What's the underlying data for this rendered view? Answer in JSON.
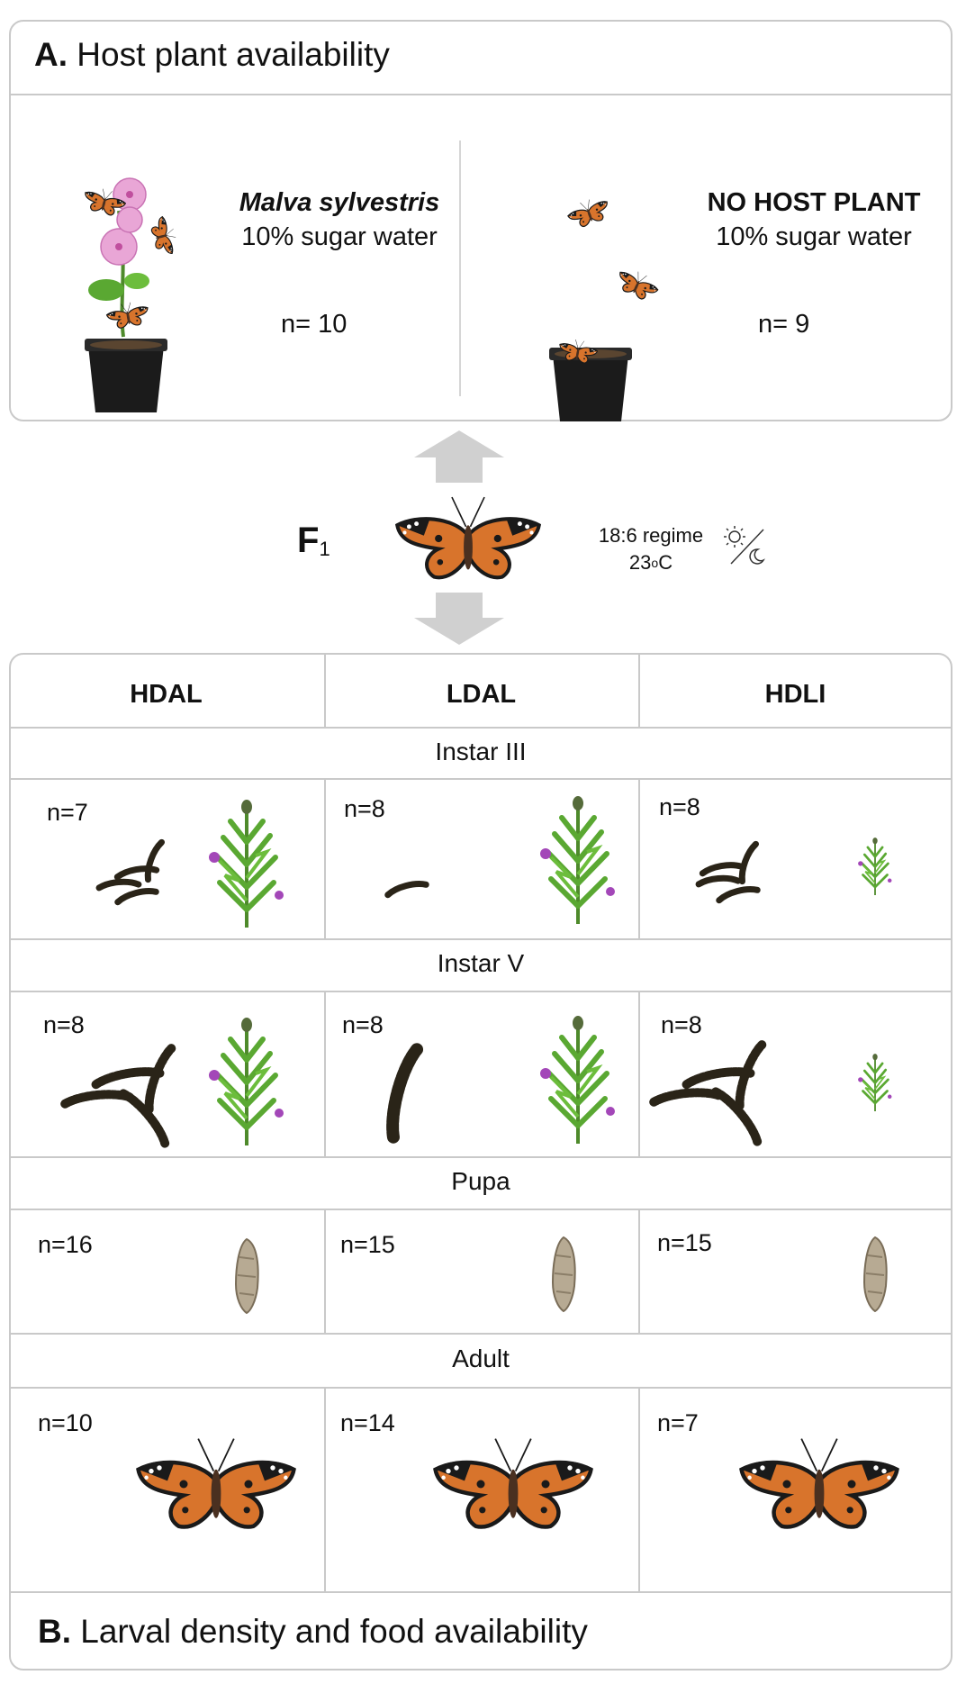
{
  "panel_a": {
    "label": "A.",
    "title": "Host plant availability",
    "left": {
      "plant": "Malva sylvestris",
      "food": "10% sugar water",
      "n": "n= 10"
    },
    "right": {
      "plant": "NO HOST PLANT",
      "food": "10% sugar water",
      "n": "n= 9"
    }
  },
  "f1": {
    "label": "F",
    "sub": "1"
  },
  "regime": {
    "line1": "18:6 regime",
    "temp_value": "23",
    "temp_sup": "o",
    "temp_unit": "C"
  },
  "panel_b": {
    "label": "B.",
    "title": "Larval density and food availability",
    "columns": [
      "HDAL",
      "LDAL",
      "HDLI"
    ],
    "stages": [
      {
        "name": "Instar III",
        "counts": [
          "n=7",
          "n=8",
          "n=8"
        ]
      },
      {
        "name": "Instar V",
        "counts": [
          "n=8",
          "n=8",
          "n=8"
        ]
      },
      {
        "name": "Pupa",
        "counts": [
          "n=16",
          "n=15",
          "n=15"
        ]
      },
      {
        "name": "Adult",
        "counts": [
          "n=10",
          "n=14",
          "n=7"
        ]
      }
    ]
  },
  "colors": {
    "border": "#c9c9c9",
    "arrow": "#d0d0d0",
    "orange": "#d8742c",
    "dark": "#1a1a1a",
    "leaf": "#5aa832",
    "flower": "#a347b8"
  }
}
